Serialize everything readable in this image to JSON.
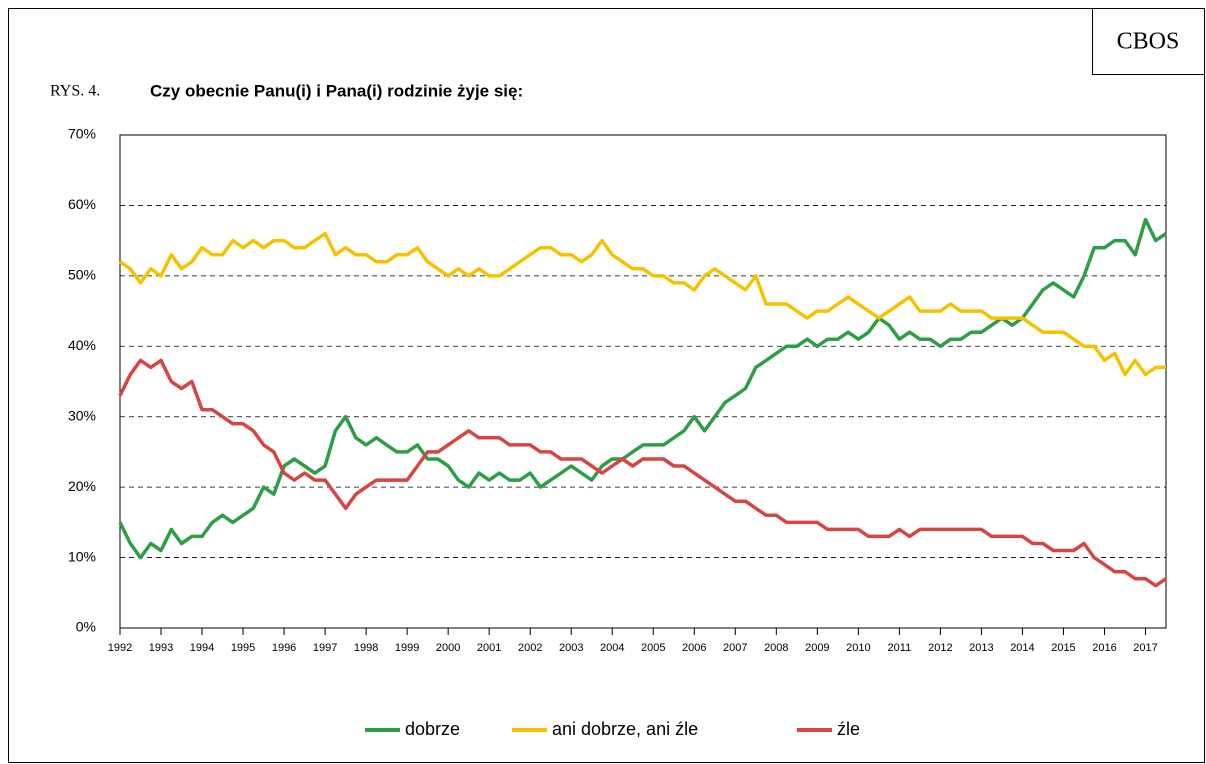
{
  "chart_data": {
    "type": "line",
    "logo": "CBOS",
    "figure_label": "RYS. 4.",
    "title": "Czy obecnie Panu(i) i Pana(i) rodzinie żyje się:",
    "x": [
      1992,
      1992.25,
      1992.5,
      1992.75,
      1993,
      1993.25,
      1993.5,
      1993.75,
      1994,
      1994.25,
      1994.5,
      1994.75,
      1995,
      1995.25,
      1995.5,
      1995.75,
      1996,
      1996.25,
      1996.5,
      1996.75,
      1997,
      1997.25,
      1997.5,
      1997.75,
      1998,
      1998.25,
      1998.5,
      1998.75,
      1999,
      1999.25,
      1999.5,
      1999.75,
      2000,
      2000.25,
      2000.5,
      2000.75,
      2001,
      2001.25,
      2001.5,
      2001.75,
      2002,
      2002.25,
      2002.5,
      2002.75,
      2003,
      2003.25,
      2003.5,
      2003.75,
      2004,
      2004.25,
      2004.5,
      2004.75,
      2005,
      2005.25,
      2005.5,
      2005.75,
      2006,
      2006.25,
      2006.5,
      2006.75,
      2007,
      2007.25,
      2007.5,
      2007.75,
      2008,
      2008.25,
      2008.5,
      2008.75,
      2009,
      2009.25,
      2009.5,
      2009.75,
      2010,
      2010.25,
      2010.5,
      2010.75,
      2011,
      2011.25,
      2011.5,
      2011.75,
      2012,
      2012.25,
      2012.5,
      2012.75,
      2013,
      2013.25,
      2013.5,
      2013.75,
      2014,
      2014.25,
      2014.5,
      2014.75,
      2015,
      2015.25,
      2015.5,
      2015.75,
      2016,
      2016.25,
      2016.5,
      2016.75,
      2017,
      2017.25,
      2017.5
    ],
    "series": [
      {
        "name": "dobrze",
        "color": "#2e9e44",
        "values": [
          15,
          12,
          10,
          12,
          11,
          14,
          12,
          13,
          13,
          15,
          16,
          15,
          16,
          17,
          20,
          19,
          23,
          24,
          23,
          22,
          23,
          28,
          30,
          27,
          26,
          27,
          26,
          25,
          25,
          26,
          24,
          24,
          23,
          21,
          20,
          22,
          21,
          22,
          21,
          21,
          22,
          20,
          21,
          22,
          23,
          22,
          21,
          23,
          24,
          24,
          25,
          26,
          26,
          26,
          27,
          28,
          30,
          28,
          30,
          32,
          33,
          34,
          37,
          38,
          39,
          40,
          40,
          41,
          40,
          41,
          41,
          42,
          41,
          42,
          44,
          43,
          41,
          42,
          41,
          41,
          40,
          41,
          41,
          42,
          42,
          43,
          44,
          43,
          44,
          46,
          48,
          49,
          48,
          47,
          50,
          54,
          54,
          55,
          55,
          53,
          58,
          55,
          56
        ]
      },
      {
        "name": "ani dobrze, ani źle",
        "color": "#f5c200",
        "values": [
          52,
          51,
          49,
          51,
          50,
          53,
          51,
          52,
          54,
          53,
          53,
          55,
          54,
          55,
          54,
          55,
          55,
          54,
          54,
          55,
          56,
          53,
          54,
          53,
          53,
          52,
          52,
          53,
          53,
          54,
          52,
          51,
          50,
          51,
          50,
          51,
          50,
          50,
          51,
          52,
          53,
          54,
          54,
          53,
          53,
          52,
          53,
          55,
          53,
          52,
          51,
          51,
          50,
          50,
          49,
          49,
          48,
          50,
          51,
          50,
          49,
          48,
          50,
          46,
          46,
          46,
          45,
          44,
          45,
          45,
          46,
          47,
          46,
          45,
          44,
          45,
          46,
          47,
          45,
          45,
          45,
          46,
          45,
          45,
          45,
          44,
          44,
          44,
          44,
          43,
          42,
          42,
          42,
          41,
          40,
          40,
          38,
          39,
          36,
          38,
          36,
          37,
          37
        ]
      },
      {
        "name": "źle",
        "color": "#d64541",
        "values": [
          33,
          36,
          38,
          37,
          38,
          35,
          34,
          35,
          31,
          31,
          30,
          29,
          29,
          28,
          26,
          25,
          22,
          21,
          22,
          21,
          21,
          19,
          17,
          19,
          20,
          21,
          21,
          21,
          21,
          23,
          25,
          25,
          26,
          27,
          28,
          27,
          27,
          27,
          26,
          26,
          26,
          25,
          25,
          24,
          24,
          24,
          23,
          22,
          23,
          24,
          23,
          24,
          24,
          24,
          23,
          23,
          22,
          21,
          20,
          19,
          18,
          18,
          17,
          16,
          16,
          15,
          15,
          15,
          15,
          14,
          14,
          14,
          14,
          13,
          13,
          13,
          14,
          13,
          14,
          14,
          14,
          14,
          14,
          14,
          14,
          13,
          13,
          13,
          13,
          12,
          12,
          11,
          11,
          11,
          12,
          10,
          9,
          8,
          8,
          7,
          7,
          6,
          7
        ]
      }
    ],
    "xlim": [
      1992,
      2017.5
    ],
    "xticks": [
      1992,
      1993,
      1994,
      1995,
      1996,
      1997,
      1998,
      1999,
      2000,
      2001,
      2002,
      2003,
      2004,
      2005,
      2006,
      2007,
      2008,
      2009,
      2010,
      2011,
      2012,
      2013,
      2014,
      2015,
      2016,
      2017
    ],
    "ylim": [
      0,
      70
    ],
    "yticks": [
      {
        "value": 0,
        "label": "0%"
      },
      {
        "value": 10,
        "label": "10%"
      },
      {
        "value": 20,
        "label": "20%"
      },
      {
        "value": 30,
        "label": "30%"
      },
      {
        "value": 40,
        "label": "40%"
      },
      {
        "value": 50,
        "label": "50%"
      },
      {
        "value": 60,
        "label": "60%"
      },
      {
        "value": 70,
        "label": "70%"
      }
    ],
    "grid": true,
    "legend": "bottom"
  }
}
